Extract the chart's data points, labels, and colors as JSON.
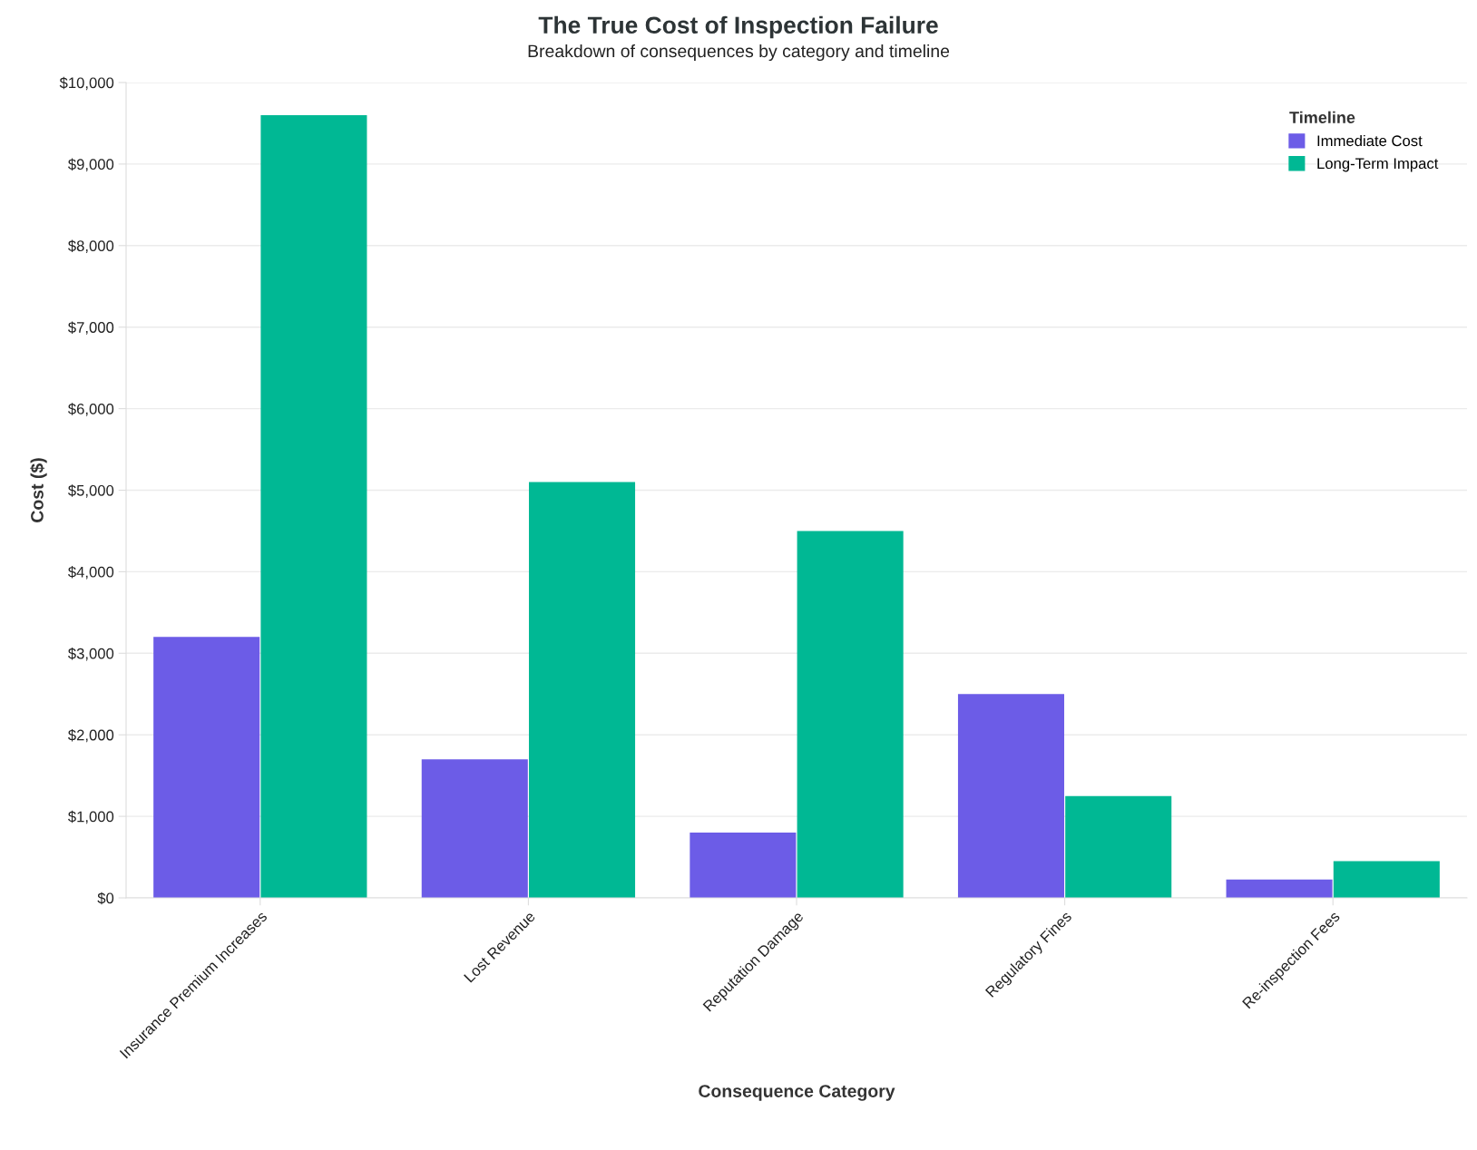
{
  "chart_data": {
    "type": "bar",
    "title": "The True Cost of Inspection Failure",
    "subtitle": "Breakdown of consequences by category and timeline",
    "xlabel": "Consequence Category",
    "ylabel": "Cost ($)",
    "legend_title": "Timeline",
    "categories": [
      "Insurance Premium Increases",
      "Lost Revenue",
      "Reputation Damage",
      "Regulatory Fines",
      "Re-inspection Fees"
    ],
    "series": [
      {
        "name": "Immediate Cost",
        "color": "#6c5ce7",
        "values": [
          3200,
          1700,
          800,
          2500,
          225
        ]
      },
      {
        "name": "Long-Term Impact",
        "color": "#00b894",
        "values": [
          9600,
          5100,
          4500,
          1250,
          450
        ]
      }
    ],
    "ylim": [
      0,
      10000
    ],
    "yticks": [
      {
        "value": 0,
        "label": "$0"
      },
      {
        "value": 1000,
        "label": "$1,000"
      },
      {
        "value": 2000,
        "label": "$2,000"
      },
      {
        "value": 3000,
        "label": "$3,000"
      },
      {
        "value": 4000,
        "label": "$4,000"
      },
      {
        "value": 5000,
        "label": "$5,000"
      },
      {
        "value": 6000,
        "label": "$6,000"
      },
      {
        "value": 7000,
        "label": "$7,000"
      },
      {
        "value": 8000,
        "label": "$8,000"
      },
      {
        "value": 9000,
        "label": "$9,000"
      },
      {
        "value": 10000,
        "label": "$10,000"
      }
    ],
    "grid": "y",
    "legend": "top right"
  }
}
